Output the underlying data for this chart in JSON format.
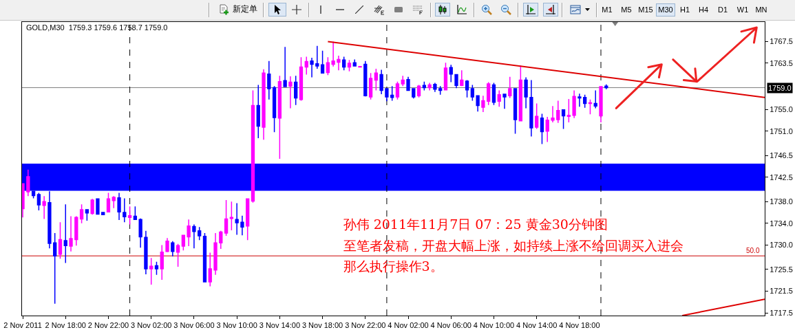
{
  "chart_data": {
    "type": "candlestick",
    "title": "GOLD,M30  1759.3 1759.6 1758.7 1759.0",
    "x": [
      "2011-11-02T14:00",
      "2011-11-02T14:30",
      "2011-11-02T15:00",
      "2011-11-02T15:30",
      "2011-11-02T16:00",
      "2011-11-02T16:30",
      "2011-11-02T17:00",
      "2011-11-02T17:30",
      "2011-11-02T18:00",
      "2011-11-02T18:30",
      "2011-11-02T19:00",
      "2011-11-02T19:30",
      "2011-11-02T20:00",
      "2011-11-02T20:30",
      "2011-11-02T21:00",
      "2011-11-02T21:30",
      "2011-11-02T22:00",
      "2011-11-02T22:30",
      "2011-11-02T23:00",
      "2011-11-02T23:30",
      "2011-11-03T00:00",
      "2011-11-03T00:30",
      "2011-11-03T01:00",
      "2011-11-03T01:30",
      "2011-11-03T02:00",
      "2011-11-03T02:30",
      "2011-11-03T03:00",
      "2011-11-03T03:30",
      "2011-11-03T04:00",
      "2011-11-03T04:30",
      "2011-11-03T05:00",
      "2011-11-03T05:30",
      "2011-11-03T06:00",
      "2011-11-03T06:30",
      "2011-11-03T07:00",
      "2011-11-03T07:30",
      "2011-11-03T08:00",
      "2011-11-03T08:30",
      "2011-11-03T09:00",
      "2011-11-03T09:30",
      "2011-11-03T10:00",
      "2011-11-03T10:30",
      "2011-11-03T11:00",
      "2011-11-03T11:30",
      "2011-11-03T12:00",
      "2011-11-03T12:30",
      "2011-11-03T13:00",
      "2011-11-03T13:30",
      "2011-11-03T14:00",
      "2011-11-03T14:30",
      "2011-11-03T15:00",
      "2011-11-03T15:30",
      "2011-11-03T16:00",
      "2011-11-03T16:30",
      "2011-11-03T17:00",
      "2011-11-03T17:30",
      "2011-11-03T18:00",
      "2011-11-03T18:30",
      "2011-11-03T19:00",
      "2011-11-03T19:30",
      "2011-11-03T20:00",
      "2011-11-03T20:30",
      "2011-11-03T21:00",
      "2011-11-03T21:30",
      "2011-11-03T22:00",
      "2011-11-03T22:30",
      "2011-11-03T23:00",
      "2011-11-03T23:30",
      "2011-11-04T00:00",
      "2011-11-04T00:30",
      "2011-11-04T01:00",
      "2011-11-04T01:30",
      "2011-11-04T02:00",
      "2011-11-04T02:30",
      "2011-11-04T03:00",
      "2011-11-04T03:30",
      "2011-11-04T04:00",
      "2011-11-04T04:30",
      "2011-11-04T05:00",
      "2011-11-04T05:30",
      "2011-11-04T06:00",
      "2011-11-04T06:30",
      "2011-11-04T07:00",
      "2011-11-04T07:30",
      "2011-11-04T08:00",
      "2011-11-04T08:30",
      "2011-11-04T09:00",
      "2011-11-04T09:30",
      "2011-11-04T10:00",
      "2011-11-04T10:30",
      "2011-11-04T11:00",
      "2011-11-04T11:30",
      "2011-11-04T12:00",
      "2011-11-04T12:30",
      "2011-11-04T13:00",
      "2011-11-04T13:30",
      "2011-11-04T14:00",
      "2011-11-04T14:30",
      "2011-11-04T15:00",
      "2011-11-04T15:30",
      "2011-11-04T16:00",
      "2011-11-04T16:30",
      "2011-11-04T17:00",
      "2011-11-04T17:30",
      "2011-11-04T18:00",
      "2011-11-04T18:30",
      "2011-11-04T19:00",
      "2011-11-04T19:30",
      "2011-11-04T20:00",
      "2011-11-04T20:30"
    ],
    "ohlc": [
      [
        1736.7,
        1741.3,
        1735.1,
        1741.3
      ],
      [
        1739.8,
        1743.9,
        1739.0,
        1742.6
      ],
      [
        1739.9,
        1739.9,
        1738.6,
        1739.1
      ],
      [
        1739.3,
        1739.6,
        1736.4,
        1737.4
      ],
      [
        1737.3,
        1739.0,
        1734.8,
        1738.0
      ],
      [
        1737.8,
        1739.9,
        1729.4,
        1730.3
      ],
      [
        1730.4,
        1732.2,
        1719.2,
        1728.0
      ],
      [
        1728.3,
        1734.2,
        1727.5,
        1731.0
      ],
      [
        1730.8,
        1737.5,
        1726.7,
        1729.9
      ],
      [
        1729.8,
        1735.3,
        1728.8,
        1731.2
      ],
      [
        1731.0,
        1735.3,
        1729.9,
        1735.1
      ],
      [
        1734.8,
        1737.5,
        1734.0,
        1736.5
      ],
      [
        1736.5,
        1736.5,
        1734.5,
        1735.9
      ],
      [
        1735.8,
        1738.5,
        1735.6,
        1738.3
      ],
      [
        1738.5,
        1738.6,
        1735.7,
        1735.7
      ],
      [
        1736.0,
        1736.1,
        1735.5,
        1735.6
      ],
      [
        1736.1,
        1739.6,
        1736.0,
        1738.5
      ],
      [
        1738.2,
        1739.0,
        1736.8,
        1738.8
      ],
      [
        1738.7,
        1739.6,
        1734.6,
        1736.1
      ],
      [
        1736.0,
        1738.6,
        1734.2,
        1735.2
      ],
      [
        1735.1,
        1737.1,
        1733.8,
        1735.4
      ],
      [
        1735.3,
        1737.1,
        1734.6,
        1734.7
      ],
      [
        1734.7,
        1734.9,
        1729.5,
        1731.5
      ],
      [
        1731.4,
        1732.6,
        1724.6,
        1725.6
      ],
      [
        1725.6,
        1727.6,
        1722.7,
        1726.1
      ],
      [
        1726.2,
        1726.9,
        1724.5,
        1725.6
      ],
      [
        1725.6,
        1730.0,
        1723.6,
        1728.7
      ],
      [
        1728.8,
        1731.3,
        1728.7,
        1730.7
      ],
      [
        1730.4,
        1730.7,
        1727.9,
        1728.8
      ],
      [
        1728.7,
        1730.2,
        1726.0,
        1729.9
      ],
      [
        1729.8,
        1731.9,
        1729.0,
        1731.8
      ],
      [
        1731.5,
        1734.7,
        1729.8,
        1733.5
      ],
      [
        1733.4,
        1733.8,
        1729.4,
        1732.5
      ],
      [
        1732.6,
        1733.3,
        1730.9,
        1731.7
      ],
      [
        1731.6,
        1732.2,
        1723.1,
        1723.2
      ],
      [
        1723.2,
        1728.6,
        1722.4,
        1725.6
      ],
      [
        1725.4,
        1732.2,
        1724.5,
        1730.4
      ],
      [
        1730.4,
        1732.6,
        1729.3,
        1732.4
      ],
      [
        1732.2,
        1738.3,
        1731.7,
        1734.8
      ],
      [
        1734.9,
        1738.0,
        1732.7,
        1735.1
      ],
      [
        1734.7,
        1737.7,
        1731.9,
        1734.1
      ],
      [
        1734.2,
        1735.4,
        1731.8,
        1733.3
      ],
      [
        1733.5,
        1738.6,
        1730.9,
        1738.5
      ],
      [
        1738.1,
        1758.5,
        1737.8,
        1755.7
      ],
      [
        1755.7,
        1759.5,
        1749.7,
        1751.9
      ],
      [
        1751.7,
        1762.4,
        1749.4,
        1761.7
      ],
      [
        1761.5,
        1763.9,
        1756.8,
        1758.8
      ],
      [
        1759.0,
        1759.3,
        1750.8,
        1753.5
      ],
      [
        1753.4,
        1761.2,
        1745.9,
        1760.1
      ],
      [
        1760.3,
        1766.5,
        1759.1,
        1759.2
      ],
      [
        1759.3,
        1761.1,
        1755.2,
        1760.0
      ],
      [
        1760.0,
        1761.2,
        1755.8,
        1757.1
      ],
      [
        1756.8,
        1764.6,
        1756.6,
        1762.8
      ],
      [
        1762.8,
        1764.7,
        1761.4,
        1763.8
      ],
      [
        1763.9,
        1764.5,
        1760.9,
        1763.3
      ],
      [
        1763.4,
        1766.7,
        1762.5,
        1763.0
      ],
      [
        1763.2,
        1765.8,
        1761.6,
        1761.7
      ],
      [
        1761.8,
        1764.6,
        1761.3,
        1763.6
      ],
      [
        1763.3,
        1767.5,
        1762.9,
        1763.9
      ],
      [
        1763.7,
        1764.9,
        1762.2,
        1764.2
      ],
      [
        1764.1,
        1764.7,
        1762.2,
        1762.8
      ],
      [
        1762.8,
        1764.1,
        1762.0,
        1763.5
      ],
      [
        1763.6,
        1764.2,
        1762.9,
        1763.0
      ],
      [
        1762.8,
        1762.9,
        1762.8,
        1762.9
      ],
      [
        1763.3,
        1763.9,
        1757.4,
        1757.5
      ],
      [
        1757.3,
        1761.7,
        1756.8,
        1760.7
      ],
      [
        1760.4,
        1762.5,
        1758.5,
        1761.7
      ],
      [
        1761.4,
        1762.3,
        1757.8,
        1758.5
      ],
      [
        1758.8,
        1758.8,
        1756.5,
        1757.3
      ],
      [
        1757.6,
        1759.3,
        1756.6,
        1757.2
      ],
      [
        1757.3,
        1760.1,
        1756.8,
        1759.7
      ],
      [
        1759.7,
        1761.2,
        1759.3,
        1760.4
      ],
      [
        1760.5,
        1761.0,
        1758.4,
        1758.5
      ],
      [
        1758.8,
        1758.8,
        1757.0,
        1757.3
      ],
      [
        1757.5,
        1759.5,
        1757.2,
        1759.3
      ],
      [
        1759.4,
        1760.1,
        1758.5,
        1759.0
      ],
      [
        1759.0,
        1759.9,
        1758.5,
        1759.5
      ],
      [
        1759.6,
        1759.9,
        1758.2,
        1758.7
      ],
      [
        1758.8,
        1759.3,
        1757.7,
        1758.5
      ],
      [
        1758.6,
        1763.6,
        1758.5,
        1762.6
      ],
      [
        1762.7,
        1763.2,
        1760.0,
        1761.5
      ],
      [
        1761.4,
        1761.5,
        1758.9,
        1759.4
      ],
      [
        1759.4,
        1762.2,
        1759.3,
        1760.4
      ],
      [
        1760.2,
        1760.4,
        1757.2,
        1758.6
      ],
      [
        1758.8,
        1759.5,
        1756.6,
        1757.3
      ],
      [
        1757.5,
        1757.6,
        1754.6,
        1755.7
      ],
      [
        1755.4,
        1757.5,
        1754.5,
        1756.6
      ],
      [
        1756.5,
        1760.0,
        1755.8,
        1759.7
      ],
      [
        1759.5,
        1759.9,
        1755.8,
        1756.3
      ],
      [
        1756.5,
        1758.5,
        1755.5,
        1757.7
      ],
      [
        1757.8,
        1757.9,
        1755.1,
        1757.3
      ],
      [
        1757.5,
        1761.0,
        1757.1,
        1758.8
      ],
      [
        1758.8,
        1758.8,
        1750.5,
        1753.1
      ],
      [
        1752.9,
        1763.1,
        1752.8,
        1760.4
      ],
      [
        1760.4,
        1760.9,
        1755.2,
        1757.3
      ],
      [
        1757.2,
        1760.4,
        1750.0,
        1751.6
      ],
      [
        1751.7,
        1756.1,
        1751.4,
        1753.7
      ],
      [
        1753.4,
        1754.2,
        1748.6,
        1750.9
      ],
      [
        1751.0,
        1753.6,
        1749.0,
        1753.0
      ],
      [
        1753.0,
        1755.6,
        1752.6,
        1753.4
      ],
      [
        1753.1,
        1756.6,
        1752.5,
        1754.8
      ],
      [
        1754.9,
        1755.0,
        1751.4,
        1753.8
      ],
      [
        1753.7,
        1756.9,
        1752.6,
        1753.9
      ],
      [
        1753.9,
        1758.5,
        1753.4,
        1757.4
      ],
      [
        1757.3,
        1757.9,
        1755.5,
        1757.1
      ],
      [
        1757.2,
        1757.7,
        1755.3,
        1756.1
      ],
      [
        1756.1,
        1756.8,
        1754.1,
        1756.2
      ],
      [
        1756.1,
        1758.5,
        1755.2,
        1755.6
      ],
      [
        1753.8,
        1759.3,
        1752.6,
        1759.2
      ],
      [
        1759.3,
        1759.6,
        1758.7,
        1759.0
      ]
    ],
    "colors": [
      "#ff00ff",
      "#ff00ff",
      "#0000ff",
      "#0000ff",
      "#ff00ff",
      "#0000ff",
      "#0000ff",
      "#ff00ff",
      "#0000ff",
      "#ff00ff",
      "#ff00ff",
      "#ff00ff",
      "#0000ff",
      "#ff00ff",
      "#0000ff",
      "#0000ff",
      "#ff00ff",
      "#ff00ff",
      "#0000ff",
      "#0000ff",
      "#ff00ff",
      "#0000ff",
      "#0000ff",
      "#0000ff",
      "#ff00ff",
      "#0000ff",
      "#ff00ff",
      "#ff00ff",
      "#0000ff",
      "#ff00ff",
      "#ff00ff",
      "#ff00ff",
      "#0000ff",
      "#0000ff",
      "#0000ff",
      "#ff00ff",
      "#ff00ff",
      "#ff00ff",
      "#ff00ff",
      "#ff00ff",
      "#0000ff",
      "#0000ff",
      "#ff00ff",
      "#ff00ff",
      "#0000ff",
      "#ff00ff",
      "#0000ff",
      "#0000ff",
      "#ff00ff",
      "#0000ff",
      "#ff00ff",
      "#0000ff",
      "#ff00ff",
      "#ff00ff",
      "#0000ff",
      "#0000ff",
      "#0000ff",
      "#ff00ff",
      "#ff00ff",
      "#ff00ff",
      "#0000ff",
      "#ff00ff",
      "#0000ff",
      "#ff00ff",
      "#0000ff",
      "#ff00ff",
      "#ff00ff",
      "#0000ff",
      "#0000ff",
      "#0000ff",
      "#ff00ff",
      "#ff00ff",
      "#0000ff",
      "#0000ff",
      "#ff00ff",
      "#0000ff",
      "#ff00ff",
      "#0000ff",
      "#0000ff",
      "#ff00ff",
      "#0000ff",
      "#0000ff",
      "#ff00ff",
      "#0000ff",
      "#0000ff",
      "#0000ff",
      "#ff00ff",
      "#ff00ff",
      "#0000ff",
      "#ff00ff",
      "#0000ff",
      "#ff00ff",
      "#0000ff",
      "#ff00ff",
      "#0000ff",
      "#0000ff",
      "#ff00ff",
      "#0000ff",
      "#ff00ff",
      "#ff00ff",
      "#ff00ff",
      "#0000ff",
      "#ff00ff",
      "#ff00ff",
      "#0000ff",
      "#0000ff",
      "#ff00ff",
      "#0000ff",
      "#ff00ff",
      "#0000ff"
    ],
    "xlim": [
      "2011-11-02T13:56",
      "2011-11-05T11:18"
    ],
    "xticks": [
      {
        "value": "2011-11-02T14:00",
        "label": "2 Nov 2011"
      },
      {
        "value": "2011-11-02T18:00",
        "label": "2 Nov 18:00"
      },
      {
        "value": "2011-11-02T22:00",
        "label": "2 Nov 22:00"
      },
      {
        "value": "2011-11-03T02:00",
        "label": "3 Nov 02:00"
      },
      {
        "value": "2011-11-03T06:00",
        "label": "3 Nov 06:00"
      },
      {
        "value": "2011-11-03T10:00",
        "label": "3 Nov 10:00"
      },
      {
        "value": "2011-11-03T14:00",
        "label": "3 Nov 14:00"
      },
      {
        "value": "2011-11-03T18:00",
        "label": "3 Nov 18:00"
      },
      {
        "value": "2011-11-03T22:00",
        "label": "3 Nov 22:00"
      },
      {
        "value": "2011-11-04T02:00",
        "label": "4 Nov 02:00"
      },
      {
        "value": "2011-11-04T06:00",
        "label": "4 Nov 06:00"
      },
      {
        "value": "2011-11-04T10:00",
        "label": "4 Nov 10:00"
      },
      {
        "value": "2011-11-04T14:00",
        "label": "4 Nov 14:00"
      },
      {
        "value": "2011-11-04T18:00",
        "label": "4 Nov 18:00"
      }
    ],
    "ylim": [
      1717.0,
      1771.1
    ],
    "yticks": [
      1767.5,
      1763.5,
      {
        "value": 1755,
        "label": "1755.0"
      },
      {
        "value": 1751,
        "label": "1751.0"
      },
      1746.5,
      1742.5,
      {
        "value": 1738,
        "label": "1738.0"
      },
      {
        "value": 1734,
        "label": "1734.0"
      },
      {
        "value": 1730,
        "label": "1730.0"
      },
      1725.5,
      1721.5,
      1717.5
    ],
    "series": [
      {
        "type": "line",
        "x": [
          "2011-11-03T18:30",
          "2011-11-05T11:18"
        ],
        "values": [
          1767.5,
          1757.2
        ],
        "color": "#dd0000"
      },
      {
        "type": "line",
        "x": [
          "2011-11-05T03:36",
          "2011-11-05T11:18"
        ],
        "values": [
          1717.0,
          1720.0
        ],
        "color": "#dd0000"
      }
    ],
    "bands": [
      {
        "axis": "y",
        "from": 1740.0,
        "to": 1745.0,
        "color": "#0000ff"
      }
    ],
    "ref_lines": [
      {
        "axis": "y",
        "value": 1759.0,
        "label": "1759.0",
        "color": "#808080"
      },
      {
        "axis": "y",
        "value": 1728.0,
        "color": "#cc0000"
      },
      {
        "axis": "x",
        "value": "2011-11-03T00:00",
        "color": "#000000",
        "line_style": "dashed"
      },
      {
        "axis": "x",
        "value": "2011-11-04T00:00",
        "color": "#000000",
        "line_style": "dashed"
      },
      {
        "axis": "x",
        "value": "2011-11-04T20:00",
        "color": "#000000",
        "line_style": "dashed"
      }
    ],
    "annotations": [
      "新定单",
      "M1",
      "M5",
      "M15",
      "M30",
      "H1",
      "H4",
      "D1",
      "W1",
      "MN",
      "孙伟 2011年11月7日 07：25 黄金30分钟图",
      "至笔者发稿，开盘大幅上涨，如持续上涨不给回调买入进会",
      "那么执行操作3。",
      {
        "text": "50.0",
        "x": "2011-11-05T11:00",
        "y": 1728.0
      }
    ]
  }
}
